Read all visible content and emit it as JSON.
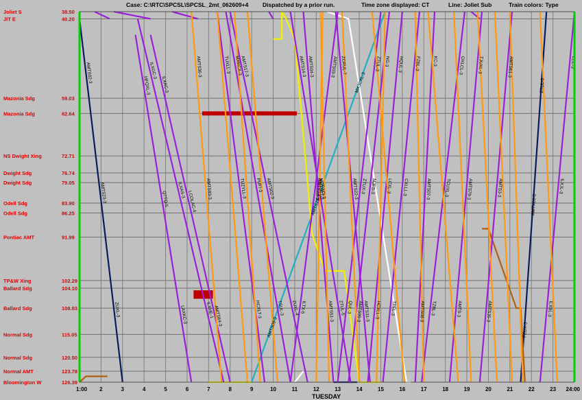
{
  "header": {
    "case": "Case: C:\\RTC\\SPCSL\\SPCSL_2mt_062609+4",
    "dispatch": "Dispatched by a prior run.",
    "timezone": "Time zone displayed: CT",
    "line": "Line: Joliet Sub",
    "colors": "Train colors: Type"
  },
  "chart_data": {
    "type": "line",
    "title": "",
    "xlabel": "TUESDAY",
    "ylabel": "",
    "xlim": [
      1,
      24
    ],
    "ylim": [
      38.5,
      126.39
    ],
    "x_ticks": [
      "1:00",
      "2",
      "3",
      "4",
      "5",
      "6",
      "7",
      "8",
      "9",
      "10",
      "11",
      "12",
      "13",
      "14",
      "15",
      "16",
      "17",
      "18",
      "19",
      "20",
      "21",
      "22",
      "23",
      "24:00"
    ],
    "stations": [
      {
        "name": "Joliet S",
        "mile": "38.50",
        "value": 38.5
      },
      {
        "name": "JIT E",
        "mile": "40.20",
        "value": 40.2
      },
      {
        "name": "Mazonia Sdg",
        "mile": "59.03",
        "value": 59.03
      },
      {
        "name": "Mazonia Sdg",
        "mile": "62.64",
        "value": 62.64
      },
      {
        "name": "NS Dwight Xing",
        "mile": "72.71",
        "value": 72.71
      },
      {
        "name": "Dwight Sdg",
        "mile": "76.74",
        "value": 76.74
      },
      {
        "name": "Dwight Sdg",
        "mile": "79.05",
        "value": 79.05
      },
      {
        "name": "Odell Sdg",
        "mile": "83.90",
        "value": 83.9
      },
      {
        "name": "Odell Sdg",
        "mile": "86.25",
        "value": 86.25
      },
      {
        "name": "Pontiac AMT",
        "mile": "91.99",
        "value": 91.99
      },
      {
        "name": "TP&W Xing",
        "mile": "102.29",
        "value": 102.29
      },
      {
        "name": "Ballard Sdg",
        "mile": "104.10",
        "value": 104.1
      },
      {
        "name": "Ballard Sdg",
        "mile": "108.83",
        "value": 108.83
      },
      {
        "name": "Normal Sdg",
        "mile": "115.05",
        "value": 115.05
      },
      {
        "name": "Normal Sdg",
        "mile": "120.50",
        "value": 120.5
      },
      {
        "name": "Normal AMT",
        "mile": "123.78",
        "value": 123.78
      },
      {
        "name": "Bloomington W",
        "mile": "126.39",
        "value": 126.39
      }
    ],
    "colors": {
      "purple": "#9a1fd8",
      "orange": "#ff9a10",
      "navy": "#0a1a5a",
      "cyan": "#20b0c0",
      "yellow": "#f0f000",
      "white": "#ffffff",
      "brown": "#b06010",
      "red": "#c00000",
      "green": "#00d000"
    },
    "series": [
      {
        "color": "navy",
        "x": [
          1,
          3
        ],
        "y": [
          40.2,
          126.39
        ]
      },
      {
        "color": "navy",
        "x": [
          21.5,
          22.7
        ],
        "y": [
          126.39,
          38.5
        ]
      },
      {
        "color": "navy",
        "x": [
          12.8,
          13.9
        ],
        "y": [
          126.39,
          126.39
        ]
      },
      {
        "color": "cyan",
        "x": [
          9,
          15.2
        ],
        "y": [
          126.39,
          38.5
        ]
      },
      {
        "color": "white",
        "x": [
          12.5,
          13.5,
          16.2,
          16.4
        ],
        "y": [
          38.5,
          40.2,
          126.39,
          126.39
        ]
      },
      {
        "color": "white",
        "x": [
          11,
          11.4
        ],
        "y": [
          126.39,
          123.8
        ]
      },
      {
        "color": "yellow",
        "x": [
          7,
          7.8,
          8,
          9
        ],
        "y": [
          126.39,
          126.39,
          126.39,
          126.39
        ]
      },
      {
        "color": "yellow",
        "x": [
          10,
          10.4,
          10.4,
          10.6,
          11,
          11.6,
          11.8,
          12.4,
          13,
          13.3,
          14,
          14.5,
          15
        ],
        "y": [
          45,
          45,
          38.5,
          40.2,
          45,
          79,
          91,
          100,
          100,
          100,
          126.39,
          126.39,
          126.39
        ]
      },
      {
        "color": "brown",
        "x": [
          1,
          1.3,
          2.3
        ],
        "y": [
          126.39,
          125,
          125
        ]
      },
      {
        "color": "brown",
        "x": [
          19.7,
          20,
          21.3,
          21.5,
          21.7
        ],
        "y": [
          90,
          90,
          108.83,
          108.83,
          126.39
        ]
      },
      {
        "color": "purple",
        "x": [
          1.7,
          2.4
        ],
        "y": [
          38.5,
          40.2
        ]
      },
      {
        "color": "purple",
        "x": [
          2.6,
          4.3
        ],
        "y": [
          38.5,
          40.2
        ]
      },
      {
        "color": "purple",
        "x": [
          3.6,
          6.2
        ],
        "y": [
          44,
          126.39
        ]
      },
      {
        "color": "purple",
        "x": [
          3.7,
          7.7
        ],
        "y": [
          40.2,
          126.39
        ]
      },
      {
        "color": "purple",
        "x": [
          4.3,
          8
        ],
        "y": [
          44,
          126.39
        ]
      },
      {
        "color": "purple",
        "x": [
          5.3,
          6.5
        ],
        "y": [
          38.5,
          40.2
        ]
      },
      {
        "color": "purple",
        "x": [
          7.4,
          9.6
        ],
        "y": [
          38.5,
          126.39
        ]
      },
      {
        "color": "purple",
        "x": [
          7.8,
          10.8
        ],
        "y": [
          38.5,
          126.39
        ]
      },
      {
        "color": "purple",
        "x": [
          8,
          11.6
        ],
        "y": [
          38.5,
          126.39
        ]
      },
      {
        "color": "purple",
        "x": [
          9.8,
          10
        ],
        "y": [
          38.5,
          40.2
        ]
      },
      {
        "color": "purple",
        "x": [
          10.8,
          13.6
        ],
        "y": [
          38.5,
          126.39
        ]
      },
      {
        "color": "purple",
        "x": [
          11.4,
          12.8
        ],
        "y": [
          38.5,
          126.39
        ]
      },
      {
        "color": "purple",
        "x": [
          13,
          10.8
        ],
        "y": [
          38.5,
          126.39
        ]
      },
      {
        "color": "purple",
        "x": [
          12.9,
          14.5
        ],
        "y": [
          38.5,
          126.39
        ]
      },
      {
        "color": "purple",
        "x": [
          15,
          13
        ],
        "y": [
          38.5,
          126.39
        ]
      },
      {
        "color": "purple",
        "x": [
          15.4,
          13.5
        ],
        "y": [
          38.5,
          126.39
        ]
      },
      {
        "color": "purple",
        "x": [
          16,
          14.4
        ],
        "y": [
          38.5,
          126.39
        ]
      },
      {
        "color": "purple",
        "x": [
          16.8,
          15.1
        ],
        "y": [
          38.5,
          126.39
        ]
      },
      {
        "color": "purple",
        "x": [
          17.5,
          16.6
        ],
        "y": [
          38.5,
          126.39
        ]
      },
      {
        "color": "purple",
        "x": [
          18.9,
          16.9
        ],
        "y": [
          38.5,
          126.39
        ]
      },
      {
        "color": "purple",
        "x": [
          19.7,
          18.2
        ],
        "y": [
          38.5,
          126.39
        ]
      },
      {
        "color": "purple",
        "x": [
          21.1,
          19.6
        ],
        "y": [
          38.5,
          126.39
        ]
      },
      {
        "color": "purple",
        "x": [
          24,
          22.4
        ],
        "y": [
          38.5,
          126.39
        ]
      },
      {
        "color": "purple",
        "x": [
          19.2,
          19.6
        ],
        "y": [
          38.5,
          40.2
        ]
      },
      {
        "color": "orange",
        "x": [
          6.2,
          7.6
        ],
        "y": [
          38.5,
          126.39
        ]
      },
      {
        "color": "orange",
        "x": [
          7.4,
          8.8
        ],
        "y": [
          38.5,
          126.39
        ]
      },
      {
        "color": "orange",
        "x": [
          8.2,
          9.4
        ],
        "y": [
          38.5,
          126.39
        ]
      },
      {
        "color": "orange",
        "x": [
          8.8,
          10.2
        ],
        "y": [
          38.5,
          126.39
        ]
      },
      {
        "color": "orange",
        "x": [
          12.2,
          12.6
        ],
        "y": [
          38.5,
          126.39
        ]
      },
      {
        "color": "orange",
        "x": [
          12.3,
          12
        ],
        "y": [
          38.5,
          126.39
        ]
      },
      {
        "color": "orange",
        "x": [
          13.2,
          14
        ],
        "y": [
          38.5,
          126.39
        ]
      },
      {
        "color": "orange",
        "x": [
          14.6,
          16.1
        ],
        "y": [
          38.5,
          126.39
        ]
      },
      {
        "color": "orange",
        "x": [
          15.2,
          14.8
        ],
        "y": [
          38.5,
          126.39
        ]
      },
      {
        "color": "orange",
        "x": [
          16.6,
          17
        ],
        "y": [
          38.5,
          126.39
        ]
      },
      {
        "color": "orange",
        "x": [
          17.2,
          18.6
        ],
        "y": [
          38.5,
          126.39
        ]
      },
      {
        "color": "orange",
        "x": [
          18.4,
          19.2
        ],
        "y": [
          38.5,
          126.39
        ]
      },
      {
        "color": "orange",
        "x": [
          19.5,
          20.4
        ],
        "y": [
          38.5,
          126.39
        ]
      },
      {
        "color": "orange",
        "x": [
          20.3,
          21.1
        ],
        "y": [
          38.5,
          126.39
        ]
      },
      {
        "color": "orange",
        "x": [
          21,
          21.6
        ],
        "y": [
          38.5,
          126.39
        ]
      },
      {
        "color": "orange",
        "x": [
          22.4,
          23.2
        ],
        "y": [
          38.5,
          126.39
        ]
      }
    ],
    "blocks": [
      {
        "color": "red",
        "x": [
          6.7,
          11.1
        ],
        "y": [
          62.64,
          62.64
        ]
      },
      {
        "color": "red",
        "x": [
          6.3,
          7.2
        ],
        "y": [
          104.6,
          106.6
        ]
      }
    ],
    "train_labels": [
      "AMTS02-3",
      "AMTS23-3",
      "ZUXL-3",
      "FZUX-3",
      "AMTX03-3",
      "ZTUL-3",
      "AMTS08-3",
      "AMTS75-3",
      "MXJCXL-3",
      "HFQXL-3",
      "Q7TQ-5",
      "LAXKC-3",
      "ILXGC-3",
      "ILXAS-3",
      "ILXHE-1",
      "ILXAC-3",
      "LCOLAC-4",
      "AMTS64-3",
      "TUXLL-3",
      "TUZYLL-3",
      "HCXLT-3",
      "MXKCX-3",
      "PUFI-3",
      "TSUL-3",
      "AMTS17-3",
      "AMTS02-3",
      "ZUXL-4",
      "AMTS14-3",
      "NCTWO-3",
      "ZTUL-5",
      "AMTS04-3",
      "AMTS67-3",
      "AMTS51-3",
      "AMTS03-3",
      "AMTS18-3",
      "ILTX-5",
      "ZCRUL-7",
      "AMTS22-3",
      "AMTS31-3",
      "ZTUL-3",
      "ZTUX-3",
      "QUL-3",
      "NG-3",
      "MJFS-3",
      "AMTS95-3",
      "HQUL-3",
      "LCXL-3",
      "HCXLL-3",
      "FZBL-3",
      "CXLLL-3",
      "TPFL-3",
      "KC-3",
      "AMTS07-3",
      "AMTS08-3",
      "OXLCL-3",
      "TCUXL-3",
      "TZBL-3",
      "TJUXL-3",
      "AMTS79-3",
      "AMTS-3",
      "AMTS61-3",
      "AMTS3-3",
      "AMTS35-3",
      "LZC-3",
      "ILXJL-3",
      "ILXBL-3",
      "AMTS36-3",
      "AMTS93-3"
    ]
  }
}
